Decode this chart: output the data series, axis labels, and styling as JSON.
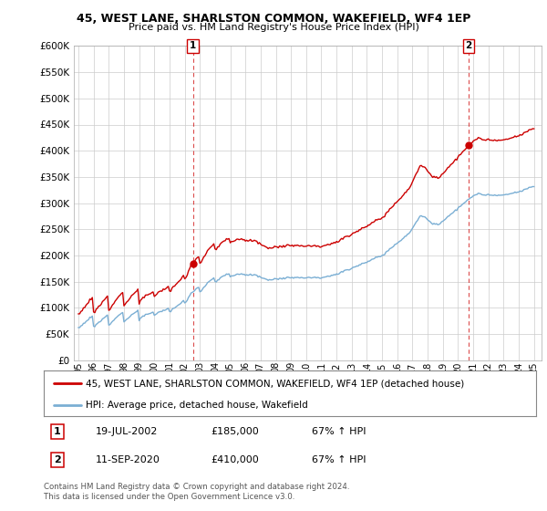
{
  "title1": "45, WEST LANE, SHARLSTON COMMON, WAKEFIELD, WF4 1EP",
  "title2": "Price paid vs. HM Land Registry's House Price Index (HPI)",
  "ylim": [
    0,
    600000
  ],
  "xlim_start": 1994.7,
  "xlim_end": 2025.5,
  "sale1_x": 2002.54,
  "sale1_y": 185000,
  "sale1_label": "1",
  "sale1_date": "19-JUL-2002",
  "sale1_price": "£185,000",
  "sale1_hpi": "67% ↑ HPI",
  "sale2_x": 2020.71,
  "sale2_y": 410000,
  "sale2_label": "2",
  "sale2_date": "11-SEP-2020",
  "sale2_price": "£410,000",
  "sale2_hpi": "67% ↑ HPI",
  "legend_line1": "45, WEST LANE, SHARLSTON COMMON, WAKEFIELD, WF4 1EP (detached house)",
  "legend_line2": "HPI: Average price, detached house, Wakefield",
  "footer": "Contains HM Land Registry data © Crown copyright and database right 2024.\nThis data is licensed under the Open Government Licence v3.0.",
  "property_color": "#cc0000",
  "hpi_color": "#7bafd4",
  "dashed_vline_color": "#cc0000",
  "background_color": "#ffffff",
  "grid_color": "#cccccc",
  "hpi_base_values": [
    62000,
    63000,
    65500,
    68000,
    70000,
    72000,
    74000,
    76000,
    78000,
    80000,
    82000,
    84000,
    64000,
    65000,
    67500,
    70000,
    72000,
    74000,
    76000,
    78000,
    80000,
    82000,
    84000,
    86000,
    68000,
    70000,
    73000,
    76000,
    78000,
    80000,
    82000,
    84000,
    86000,
    88000,
    90000,
    91000,
    74000,
    76000,
    78000,
    80000,
    82000,
    84000,
    86000,
    88000,
    90000,
    92000,
    93000,
    94000,
    78000,
    80000,
    82000,
    84000,
    85000,
    86000,
    87000,
    88000,
    89000,
    90000,
    91000,
    92000,
    85000,
    87000,
    89000,
    91000,
    92000,
    93000,
    94000,
    95000,
    96000,
    97000,
    98000,
    99000,
    92000,
    94000,
    96000,
    98000,
    100000,
    102000,
    104000,
    106000,
    108000,
    110000,
    112000,
    114000,
    108000,
    112000,
    116000,
    120000,
    124000,
    128000,
    130000,
    132000,
    134000,
    136000,
    138000,
    140000,
    130000,
    133000,
    136000,
    139000,
    142000,
    145000,
    148000,
    150000,
    152000,
    154000,
    156000,
    158000,
    148000,
    150000,
    152000,
    154000,
    156000,
    158000,
    160000,
    162000,
    163000,
    164000,
    165000,
    166000,
    158000,
    160000,
    161000,
    162000,
    163000,
    164000,
    165000,
    165000,
    165000,
    165000,
    165000,
    165000,
    162000,
    162000,
    162000,
    163000,
    163000,
    163000,
    163000,
    163000,
    162000,
    162000,
    161000,
    160000,
    158000,
    157000,
    156000,
    155000,
    155000,
    155000,
    154000,
    154000,
    154000,
    154000,
    155000,
    156000,
    155000,
    155000,
    155000,
    156000,
    156000,
    157000,
    157000,
    157000,
    158000,
    158000,
    158000,
    158000,
    158000,
    158000,
    158000,
    158000,
    158000,
    158000,
    158000,
    158000,
    158000,
    158000,
    158000,
    158000,
    158000,
    158000,
    158000,
    158000,
    158000,
    158000,
    158000,
    158000,
    158000,
    158000,
    158000,
    158000,
    158000,
    158500,
    159000,
    159500,
    160000,
    160500,
    161000,
    161500,
    162000,
    162500,
    163000,
    163500,
    164000,
    165000,
    166000,
    167000,
    168000,
    169000,
    170000,
    171000,
    172000,
    173000,
    174000,
    175000,
    176000,
    177000,
    178000,
    179000,
    180000,
    181000,
    182000,
    183000,
    184000,
    185000,
    186000,
    187000,
    188000,
    189000,
    190000,
    191000,
    192000,
    193000,
    194000,
    195000,
    196000,
    197000,
    198000,
    199000,
    200000,
    202000,
    204000,
    206000,
    208000,
    210000,
    212000,
    214000,
    216000,
    218000,
    220000,
    222000,
    224000,
    226000,
    228000,
    230000,
    232000,
    234000,
    236000,
    238000,
    240000,
    242000,
    245000,
    248000,
    252000,
    256000,
    260000,
    264000,
    268000,
    272000,
    274000,
    276000,
    276000,
    274000,
    272000,
    270000,
    268000,
    266000,
    264000,
    262000,
    260000,
    260000,
    260000,
    260000,
    260000,
    260000,
    262000,
    264000,
    266000,
    268000,
    270000,
    272000,
    274000,
    276000,
    278000,
    280000,
    282000,
    284000,
    286000,
    288000,
    290000,
    292000,
    294000,
    296000,
    298000,
    300000,
    302000,
    304000,
    306000,
    308000,
    310000,
    312000,
    314000,
    315000,
    316000,
    317000,
    318000,
    318000,
    317000,
    317000,
    316000,
    316000,
    315000,
    315000,
    315000,
    315000,
    315000,
    315000,
    315000,
    315000,
    315000,
    315000,
    315000,
    315000,
    315000,
    315000,
    315000,
    315500,
    316000,
    316500,
    317000,
    317500,
    318000,
    318500,
    319000,
    319500,
    320000,
    320500,
    321000,
    322000,
    323000,
    324000,
    325000,
    326000,
    327000,
    328000,
    329000,
    330000,
    331000,
    332000,
    332000
  ]
}
